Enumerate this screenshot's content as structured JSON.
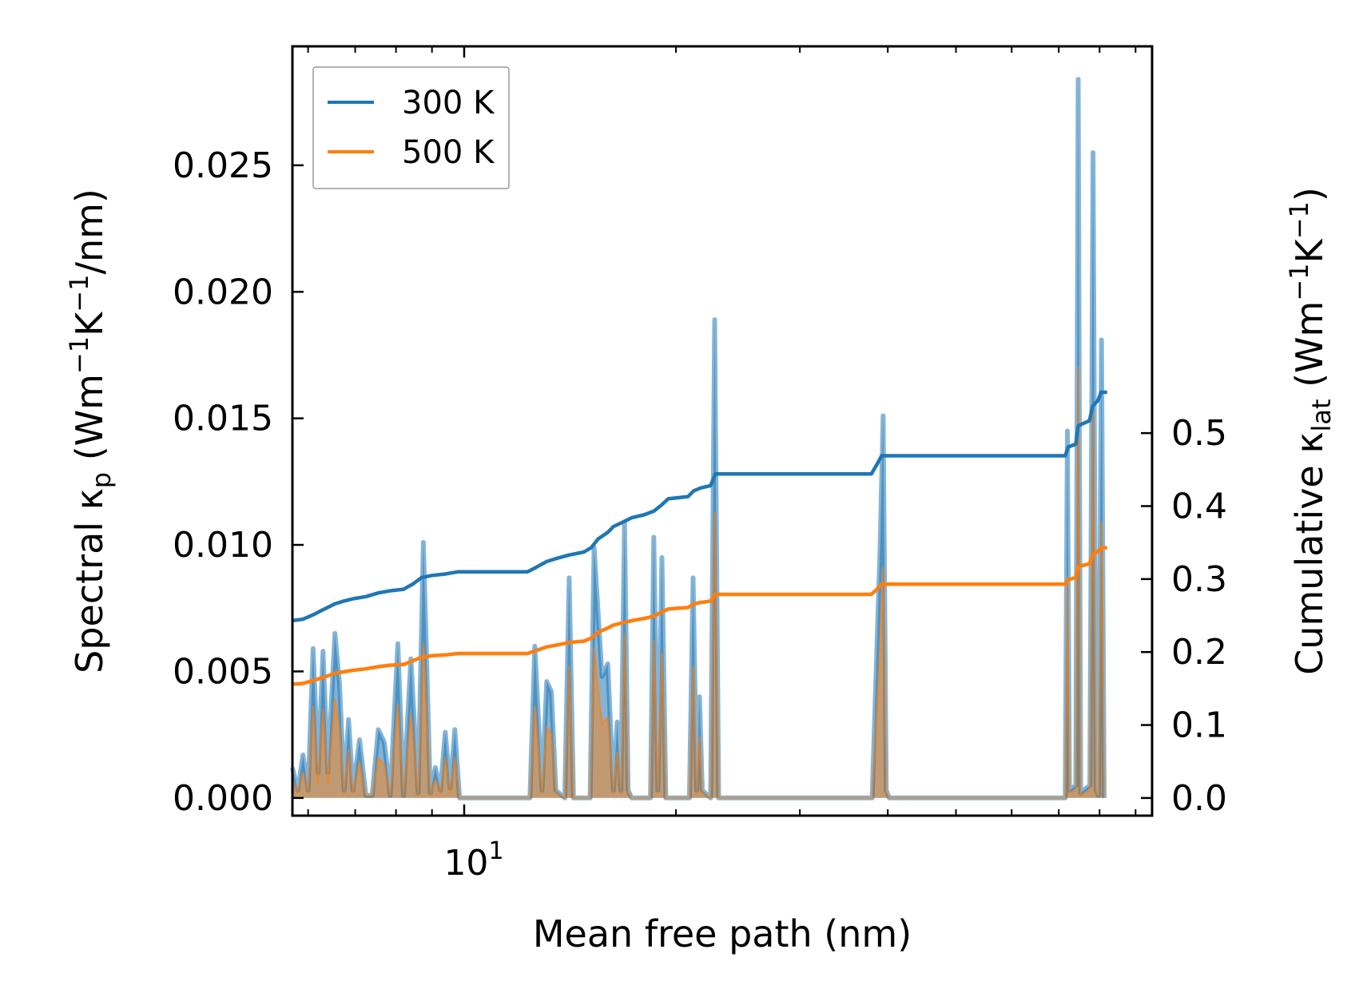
{
  "chart_data": {
    "type": "line",
    "xscale": "log",
    "xlim": [
      5.7,
      95
    ],
    "xlabel": "Mean free path (nm)",
    "x_major_tick": {
      "value": 10,
      "base": "10",
      "exponent": "1"
    },
    "x_minor_ticks": [
      6,
      7,
      8,
      9,
      20,
      30,
      40,
      50,
      60,
      70,
      80,
      90
    ],
    "y_left": {
      "label_parts": [
        "Spectral κ",
        "p",
        " (Wm",
        "−1",
        "K",
        "−1",
        "/nm)"
      ],
      "lim": [
        -0.0007,
        0.0297
      ],
      "ticks": [
        0.0,
        0.005,
        0.01,
        0.015,
        0.02,
        0.025
      ],
      "tick_labels": [
        "0.000",
        "0.005",
        "0.010",
        "0.015",
        "0.020",
        "0.025"
      ]
    },
    "y_right": {
      "label_parts": [
        "Cumulative κ",
        "lat",
        " (Wm",
        "−1",
        "K",
        "−1",
        ")"
      ],
      "lim": [
        -0.0242,
        1.03
      ],
      "ticks": [
        0.0,
        0.1,
        0.2,
        0.3,
        0.4,
        0.5
      ],
      "tick_labels": [
        "0.0",
        "0.1",
        "0.2",
        "0.3",
        "0.4",
        "0.5"
      ]
    },
    "legend": {
      "position": "top-left",
      "entries": [
        "300 K",
        "500 K"
      ]
    },
    "colors": {
      "300 K": "#1f77b4",
      "500 K": "#ff7f0e",
      "fill_300": "#1f77b4",
      "fill_500": "#ff7f0e"
    },
    "spectral": {
      "300 K": [
        [
          5.7,
          0.0012
        ],
        [
          5.8,
          0.0003
        ],
        [
          5.9,
          0.0017
        ],
        [
          6.0,
          0.0003
        ],
        [
          6.1,
          0.0059
        ],
        [
          6.2,
          0.001
        ],
        [
          6.3,
          0.0058
        ],
        [
          6.4,
          0.001
        ],
        [
          6.55,
          0.0065
        ],
        [
          6.65,
          0.0045
        ],
        [
          6.75,
          0.0003
        ],
        [
          6.85,
          0.0031
        ],
        [
          6.95,
          0.0003
        ],
        [
          7.1,
          0.0023
        ],
        [
          7.25,
          0.0001
        ],
        [
          7.4,
          0.0001
        ],
        [
          7.55,
          0.0027
        ],
        [
          7.7,
          0.0022
        ],
        [
          7.85,
          0.0001
        ],
        [
          8.05,
          0.0061
        ],
        [
          8.2,
          0.0001
        ],
        [
          8.4,
          0.0055
        ],
        [
          8.6,
          0.0002
        ],
        [
          8.75,
          0.0101
        ],
        [
          8.95,
          0.0002
        ],
        [
          9.1,
          0.0012
        ],
        [
          9.25,
          0.0003
        ],
        [
          9.4,
          0.0026
        ],
        [
          9.55,
          0.0004
        ],
        [
          9.7,
          0.0027
        ],
        [
          9.85,
          0.0
        ],
        [
          12.4,
          0.0
        ],
        [
          12.6,
          0.006
        ],
        [
          12.9,
          0.0003
        ],
        [
          13.1,
          0.0046
        ],
        [
          13.3,
          0.0042
        ],
        [
          13.5,
          0.0003
        ],
        [
          13.9,
          0.0
        ],
        [
          14.1,
          0.0087
        ],
        [
          14.3,
          0.0
        ],
        [
          15.1,
          0.0
        ],
        [
          15.3,
          0.0099
        ],
        [
          15.7,
          0.0048
        ],
        [
          16.0,
          0.0053
        ],
        [
          16.3,
          0.0003
        ],
        [
          16.5,
          0.003
        ],
        [
          16.7,
          0.0003
        ],
        [
          16.9,
          0.0109
        ],
        [
          17.1,
          0.0003
        ],
        [
          17.3,
          0.0
        ],
        [
          18.4,
          0.0
        ],
        [
          18.6,
          0.0103
        ],
        [
          18.85,
          0.0003
        ],
        [
          19.1,
          0.0095
        ],
        [
          19.35,
          0.0
        ],
        [
          20.9,
          0.0
        ],
        [
          21.15,
          0.0087
        ],
        [
          21.4,
          0.0003
        ],
        [
          21.6,
          0.004
        ],
        [
          21.8,
          0.0003
        ],
        [
          22.4,
          0.0
        ],
        [
          22.7,
          0.0189
        ],
        [
          23.0,
          0.0
        ],
        [
          38.0,
          0.0
        ],
        [
          39.0,
          0.0098
        ],
        [
          39.4,
          0.0151
        ],
        [
          39.8,
          0.0003
        ],
        [
          40.2,
          0.0
        ],
        [
          71.5,
          0.0
        ],
        [
          72.0,
          0.0145
        ],
        [
          72.5,
          0.0003
        ],
        [
          74.0,
          0.0005
        ],
        [
          74.6,
          0.0284
        ],
        [
          75.2,
          0.0002
        ],
        [
          77.5,
          0.0005
        ],
        [
          78.3,
          0.0255
        ],
        [
          79.1,
          0.0003
        ],
        [
          79.7,
          0.0001
        ],
        [
          80.5,
          0.0181
        ],
        [
          81.2,
          0.0
        ]
      ],
      "500 K": [
        [
          5.7,
          0.0007
        ],
        [
          5.8,
          0.0002
        ],
        [
          5.9,
          0.001
        ],
        [
          6.0,
          0.0002
        ],
        [
          6.1,
          0.0036
        ],
        [
          6.2,
          0.0006
        ],
        [
          6.3,
          0.0035
        ],
        [
          6.4,
          0.0006
        ],
        [
          6.55,
          0.0039
        ],
        [
          6.65,
          0.0027
        ],
        [
          6.75,
          0.0002
        ],
        [
          6.85,
          0.0019
        ],
        [
          6.95,
          0.0002
        ],
        [
          7.1,
          0.0014
        ],
        [
          7.25,
          0.0001
        ],
        [
          7.4,
          0.0001
        ],
        [
          7.55,
          0.0016
        ],
        [
          7.7,
          0.0013
        ],
        [
          7.85,
          0.0001
        ],
        [
          8.05,
          0.0037
        ],
        [
          8.2,
          0.0001
        ],
        [
          8.4,
          0.0033
        ],
        [
          8.6,
          0.0001
        ],
        [
          8.75,
          0.0061
        ],
        [
          8.95,
          0.0001
        ],
        [
          9.1,
          0.0007
        ],
        [
          9.25,
          0.0002
        ],
        [
          9.4,
          0.0016
        ],
        [
          9.55,
          0.0002
        ],
        [
          9.7,
          0.0016
        ],
        [
          9.85,
          0.0
        ],
        [
          12.4,
          0.0
        ],
        [
          12.6,
          0.0036
        ],
        [
          12.9,
          0.0002
        ],
        [
          13.1,
          0.0028
        ],
        [
          13.3,
          0.0025
        ],
        [
          13.5,
          0.0002
        ],
        [
          13.9,
          0.0
        ],
        [
          14.1,
          0.0052
        ],
        [
          14.3,
          0.0
        ],
        [
          15.1,
          0.0
        ],
        [
          15.3,
          0.0059
        ],
        [
          15.7,
          0.0029
        ],
        [
          16.0,
          0.0032
        ],
        [
          16.3,
          0.0002
        ],
        [
          16.5,
          0.0018
        ],
        [
          16.7,
          0.0002
        ],
        [
          16.9,
          0.0065
        ],
        [
          17.1,
          0.0002
        ],
        [
          17.3,
          0.0
        ],
        [
          18.4,
          0.0
        ],
        [
          18.6,
          0.0062
        ],
        [
          18.85,
          0.0002
        ],
        [
          19.1,
          0.0057
        ],
        [
          19.35,
          0.0
        ],
        [
          20.9,
          0.0
        ],
        [
          21.15,
          0.0052
        ],
        [
          21.4,
          0.0002
        ],
        [
          21.6,
          0.0024
        ],
        [
          21.8,
          0.0002
        ],
        [
          22.4,
          0.0
        ],
        [
          22.7,
          0.0113
        ],
        [
          23.0,
          0.0
        ],
        [
          38.0,
          0.0
        ],
        [
          39.0,
          0.0059
        ],
        [
          39.4,
          0.0091
        ],
        [
          39.8,
          0.0002
        ],
        [
          40.2,
          0.0
        ],
        [
          71.5,
          0.0
        ],
        [
          72.0,
          0.0087
        ],
        [
          72.5,
          0.0002
        ],
        [
          74.0,
          0.0003
        ],
        [
          74.6,
          0.017
        ],
        [
          75.2,
          0.0001
        ],
        [
          77.5,
          0.0003
        ],
        [
          78.3,
          0.0153
        ],
        [
          79.1,
          0.0002
        ],
        [
          79.7,
          0.0001
        ],
        [
          80.5,
          0.0109
        ],
        [
          81.2,
          0.0
        ]
      ]
    },
    "cumulative": {
      "300 K": [
        [
          5.7,
          0.243
        ],
        [
          5.9,
          0.245
        ],
        [
          6.1,
          0.251
        ],
        [
          6.3,
          0.258
        ],
        [
          6.55,
          0.266
        ],
        [
          6.75,
          0.27
        ],
        [
          6.95,
          0.273
        ],
        [
          7.25,
          0.276
        ],
        [
          7.55,
          0.281
        ],
        [
          7.85,
          0.284
        ],
        [
          8.2,
          0.286
        ],
        [
          8.45,
          0.293
        ],
        [
          8.7,
          0.302
        ],
        [
          9.0,
          0.305
        ],
        [
          9.4,
          0.307
        ],
        [
          9.8,
          0.31
        ],
        [
          12.3,
          0.31
        ],
        [
          12.65,
          0.316
        ],
        [
          13.1,
          0.324
        ],
        [
          13.6,
          0.329
        ],
        [
          14.1,
          0.333
        ],
        [
          14.8,
          0.337
        ],
        [
          15.15,
          0.343
        ],
        [
          15.5,
          0.355
        ],
        [
          16.0,
          0.364
        ],
        [
          16.3,
          0.372
        ],
        [
          16.8,
          0.378
        ],
        [
          17.3,
          0.384
        ],
        [
          18.0,
          0.388
        ],
        [
          18.6,
          0.393
        ],
        [
          19.1,
          0.402
        ],
        [
          19.5,
          0.41
        ],
        [
          20.8,
          0.413
        ],
        [
          21.2,
          0.421
        ],
        [
          21.7,
          0.425
        ],
        [
          22.4,
          0.428
        ],
        [
          22.75,
          0.444
        ],
        [
          37.9,
          0.444
        ],
        [
          38.6,
          0.457
        ],
        [
          39.2,
          0.469
        ],
        [
          71.5,
          0.469
        ],
        [
          72.2,
          0.481
        ],
        [
          74.0,
          0.485
        ],
        [
          74.6,
          0.51
        ],
        [
          77.4,
          0.517
        ],
        [
          78.2,
          0.537
        ],
        [
          79.6,
          0.545
        ],
        [
          80.4,
          0.556
        ],
        [
          82.0,
          0.556
        ]
      ],
      "500 K": [
        [
          5.7,
          0.156
        ],
        [
          5.9,
          0.157
        ],
        [
          6.1,
          0.161
        ],
        [
          6.3,
          0.165
        ],
        [
          6.55,
          0.171
        ],
        [
          6.75,
          0.173
        ],
        [
          6.95,
          0.175
        ],
        [
          7.25,
          0.177
        ],
        [
          7.55,
          0.18
        ],
        [
          7.85,
          0.182
        ],
        [
          8.2,
          0.183
        ],
        [
          8.45,
          0.188
        ],
        [
          8.7,
          0.193
        ],
        [
          9.0,
          0.195
        ],
        [
          9.4,
          0.196
        ],
        [
          9.8,
          0.198
        ],
        [
          12.3,
          0.198
        ],
        [
          12.65,
          0.202
        ],
        [
          13.1,
          0.207
        ],
        [
          13.6,
          0.21
        ],
        [
          14.1,
          0.213
        ],
        [
          14.8,
          0.215
        ],
        [
          15.15,
          0.219
        ],
        [
          15.5,
          0.227
        ],
        [
          16.0,
          0.233
        ],
        [
          16.3,
          0.237
        ],
        [
          16.8,
          0.24
        ],
        [
          17.3,
          0.243
        ],
        [
          18.0,
          0.246
        ],
        [
          18.6,
          0.249
        ],
        [
          19.1,
          0.255
        ],
        [
          19.5,
          0.259
        ],
        [
          20.8,
          0.261
        ],
        [
          21.2,
          0.266
        ],
        [
          21.7,
          0.268
        ],
        [
          22.4,
          0.27
        ],
        [
          22.75,
          0.279
        ],
        [
          37.9,
          0.279
        ],
        [
          38.6,
          0.286
        ],
        [
          39.2,
          0.293
        ],
        [
          71.5,
          0.293
        ],
        [
          72.2,
          0.299
        ],
        [
          74.0,
          0.302
        ],
        [
          74.6,
          0.317
        ],
        [
          77.4,
          0.321
        ],
        [
          78.2,
          0.333
        ],
        [
          79.6,
          0.338
        ],
        [
          80.4,
          0.343
        ],
        [
          82.0,
          0.343
        ]
      ]
    }
  }
}
